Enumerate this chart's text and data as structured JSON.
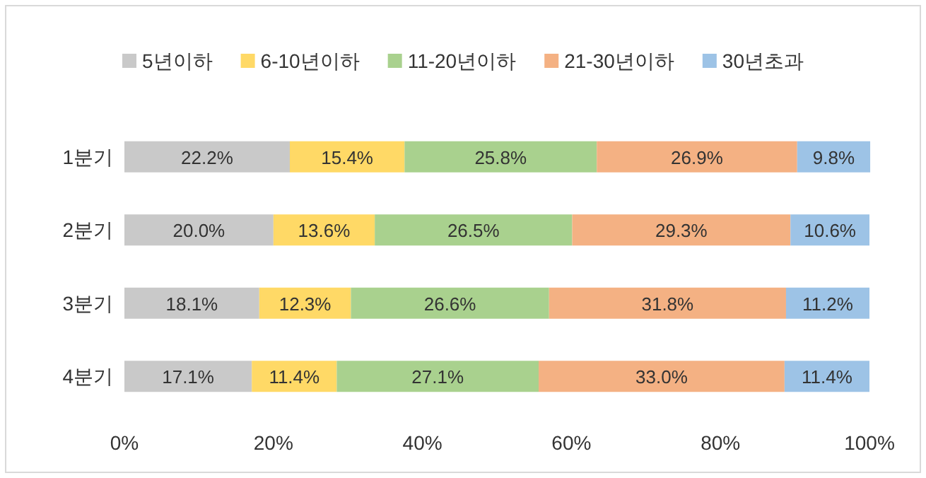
{
  "chart_data": {
    "type": "bar",
    "orientation": "horizontal",
    "stacked": true,
    "legend": "top",
    "categories": [
      "1분기",
      "2분기",
      "3분기",
      "4분기"
    ],
    "xlim": [
      0,
      100
    ],
    "xticks": [
      {
        "value": 0,
        "label": "0%"
      },
      {
        "value": 20,
        "label": "20%"
      },
      {
        "value": 40,
        "label": "40%"
      },
      {
        "value": 60,
        "label": "60%"
      },
      {
        "value": 80,
        "label": "80%"
      },
      {
        "value": 100,
        "label": "100%"
      }
    ],
    "series": [
      {
        "name": "5년이하",
        "color": "#c9c9c9",
        "values": [
          22.2,
          20.0,
          18.1,
          17.1
        ],
        "value_labels": [
          "22.2%",
          "20.0%",
          "18.1%",
          "17.1%"
        ]
      },
      {
        "name": "6-10년이하",
        "color": "#ffd966",
        "values": [
          15.4,
          13.6,
          12.3,
          11.4
        ],
        "value_labels": [
          "15.4%",
          "13.6%",
          "12.3%",
          "11.4%"
        ]
      },
      {
        "name": "11-20년이하",
        "color": "#a9d18e",
        "values": [
          25.8,
          26.5,
          26.6,
          27.1
        ],
        "value_labels": [
          "25.8%",
          "26.5%",
          "26.6%",
          "27.1%"
        ]
      },
      {
        "name": "21-30년이하",
        "color": "#f4b183",
        "values": [
          26.9,
          29.3,
          31.8,
          33.0
        ],
        "value_labels": [
          "26.9%",
          "29.3%",
          "31.8%",
          "33.0%"
        ]
      },
      {
        "name": "30년초과",
        "color": "#9dc3e6",
        "values": [
          9.8,
          10.6,
          11.2,
          11.4
        ],
        "value_labels": [
          "9.8%",
          "10.6%",
          "11.2%",
          "11.4%"
        ]
      }
    ]
  }
}
